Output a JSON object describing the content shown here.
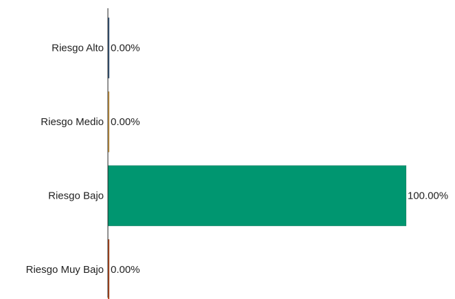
{
  "chart_data": {
    "type": "bar",
    "orientation": "horizontal",
    "categories": [
      "Riesgo Alto",
      "Riesgo Medio",
      "Riesgo Bajo",
      "Riesgo Muy Bajo"
    ],
    "values": [
      0,
      0,
      100,
      0
    ],
    "value_labels": [
      "0.00%",
      "0.00%",
      "100.00%",
      "0.00%"
    ],
    "colors": [
      "#3b5f87",
      "#e0a94a",
      "#009670",
      "#c8501e"
    ],
    "title": "",
    "xlabel": "",
    "ylabel": "",
    "xlim": [
      0,
      100
    ],
    "grid": false,
    "legend": "none"
  }
}
